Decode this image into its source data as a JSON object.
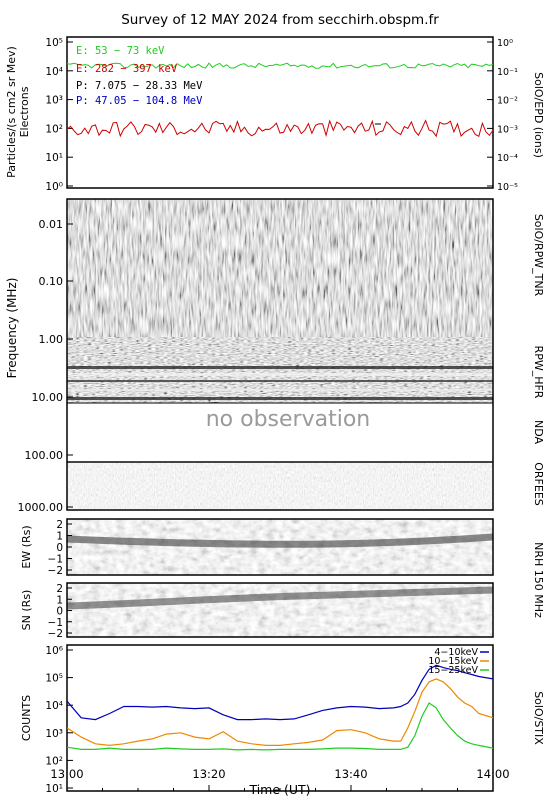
{
  "title": "Survey of 12 MAY 2024 from secchirh.obspm.fr",
  "x_axis": {
    "label": "Time (UT)",
    "ticks": [
      "13:00",
      "13:20",
      "13:40",
      "14:00"
    ]
  },
  "colors": {
    "green": "#22cc22",
    "red": "#cc0000",
    "black": "#000000",
    "blue": "#0000bb",
    "orange": "#ee8800",
    "stix_green": "#22cc22"
  },
  "chart_data": [
    {
      "type": "line",
      "panel": "epd",
      "ylabel": "Particles/(s cm2 sr MeV) Electrons",
      "right_label": "SolO/EPD (ions)",
      "y_scale": "log",
      "ylim": [
        1,
        100000
      ],
      "y_ticks": [
        "10⁰",
        "10¹",
        "10²",
        "10³",
        "10⁴",
        "10⁵"
      ],
      "right_ylim": [
        1e-05,
        1
      ],
      "right_ticks": [
        "10⁻⁵",
        "10⁻⁴",
        "10⁻³",
        "10⁻²",
        "10⁻¹",
        "10⁰"
      ],
      "series": [
        {
          "name": "E: 53 − 73 keV",
          "color": "#22cc22",
          "approx_level": 15000
        },
        {
          "name": "E: 282 − 397 keV",
          "color": "#cc0000",
          "approx_level": 100
        },
        {
          "name": "P: 7.075 − 28.33 MeV",
          "color": "#000000"
        },
        {
          "name": "P: 47.05 − 104.8 MeV",
          "color": "#0000bb"
        }
      ]
    },
    {
      "type": "heatmap",
      "panel": "radio",
      "ylabel": "Frequency (MHz)",
      "y_scale": "log",
      "y_ticks": [
        "0.01",
        "0.10",
        "1.00",
        "10.00",
        "100.00",
        "1000.00"
      ],
      "right_labels": [
        "SolO/RPW_TNR",
        "RPW_HFR",
        "NDA",
        "ORFEES"
      ],
      "annotation": "no observation"
    },
    {
      "type": "heatmap",
      "panel": "nrh_ew",
      "ylabel": "EW (Rs)",
      "ylim": [
        -2,
        2
      ],
      "y_ticks": [
        "2",
        "1",
        "0",
        "−1",
        "−2"
      ]
    },
    {
      "type": "heatmap",
      "panel": "nrh_sn",
      "ylabel": "SN (Rs)",
      "ylim": [
        -2,
        2
      ],
      "y_ticks": [
        "2",
        "1",
        "0",
        "−1",
        "−2"
      ],
      "right_label": "NRH 150 MHz"
    },
    {
      "type": "line",
      "panel": "stix",
      "ylabel": "COUNTS",
      "right_label": "SolO/STIX",
      "y_scale": "log",
      "ylim": [
        10,
        1000000
      ],
      "y_ticks": [
        "10¹",
        "10²",
        "10³",
        "10⁴",
        "10⁵",
        "10⁶"
      ],
      "x_minutes": [
        0,
        2,
        4,
        6,
        8,
        10,
        12,
        14,
        16,
        18,
        20,
        22,
        24,
        26,
        28,
        30,
        32,
        34,
        36,
        38,
        40,
        42,
        44,
        46,
        47,
        48,
        49,
        50,
        51,
        52,
        53,
        54,
        55,
        56,
        57,
        58,
        60
      ],
      "series": [
        {
          "name": "4−10keV",
          "color": "#0000bb",
          "values": [
            14000,
            3500,
            3000,
            5000,
            9000,
            9000,
            8500,
            9000,
            8000,
            7500,
            8000,
            4500,
            3000,
            3000,
            3200,
            3000,
            3200,
            4500,
            6500,
            8000,
            9000,
            8500,
            7500,
            8000,
            9000,
            12000,
            25000,
            80000,
            200000,
            280000,
            230000,
            200000,
            180000,
            150000,
            130000,
            110000,
            90000
          ]
        },
        {
          "name": "10−15keV",
          "color": "#ee8800",
          "values": [
            1500,
            700,
            400,
            350,
            400,
            500,
            600,
            900,
            1000,
            700,
            600,
            1100,
            500,
            400,
            350,
            350,
            400,
            450,
            550,
            1200,
            1300,
            1000,
            600,
            500,
            500,
            1500,
            6000,
            30000,
            70000,
            90000,
            70000,
            40000,
            20000,
            12000,
            9000,
            5000,
            3500
          ]
        },
        {
          "name": "15−25keV",
          "color": "#22cc22",
          "values": [
            300,
            250,
            250,
            280,
            250,
            250,
            250,
            280,
            260,
            250,
            250,
            260,
            240,
            250,
            240,
            250,
            250,
            250,
            260,
            280,
            280,
            270,
            250,
            250,
            250,
            300,
            800,
            4000,
            12000,
            8000,
            3000,
            1500,
            800,
            500,
            400,
            350,
            280
          ]
        }
      ]
    }
  ]
}
